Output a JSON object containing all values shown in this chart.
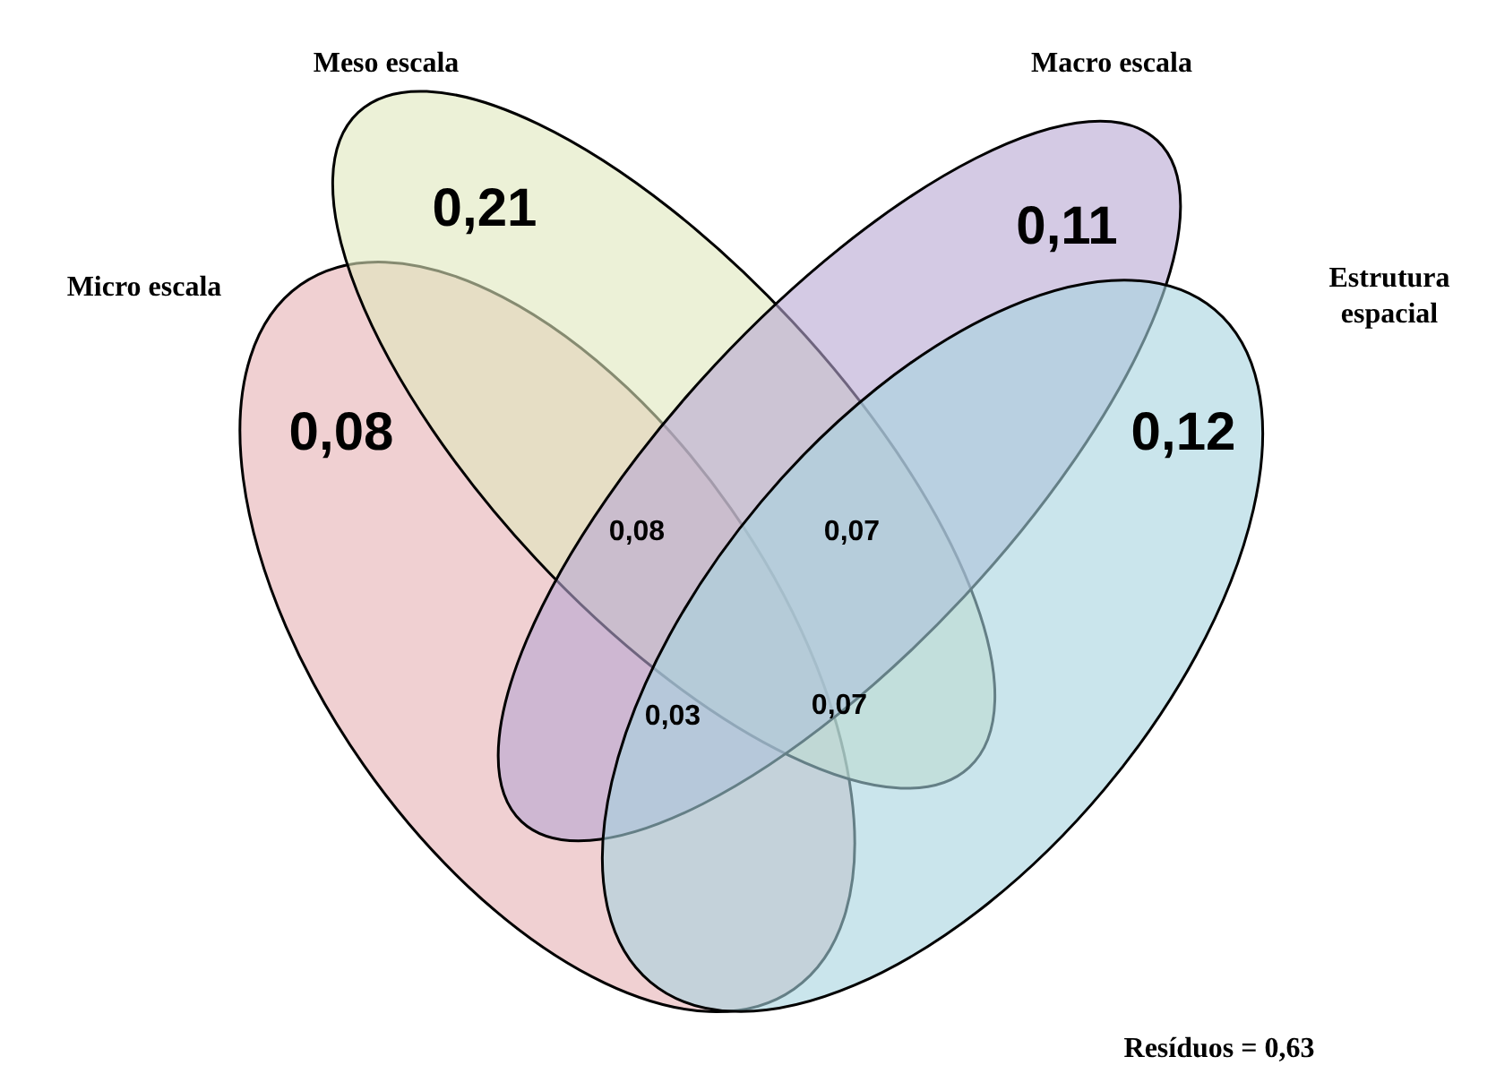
{
  "chart_data": {
    "type": "other",
    "categories": [
      "Micro escala",
      "Meso escala",
      "Macro escala",
      "Estrutura espacial"
    ],
    "colors": [
      "#e6b0b4",
      "#dfe8bd",
      "#b7a6d2",
      "#a6d3df"
    ],
    "values": [
      0.08,
      0.21,
      0.11,
      0.12
    ],
    "value_labels": [
      "0,08",
      "0,21",
      "0,11",
      "0,12"
    ],
    "annotations": [
      "0,08",
      "0,07",
      "0,03",
      "0,07",
      "Resíduos = 0,63"
    ]
  }
}
